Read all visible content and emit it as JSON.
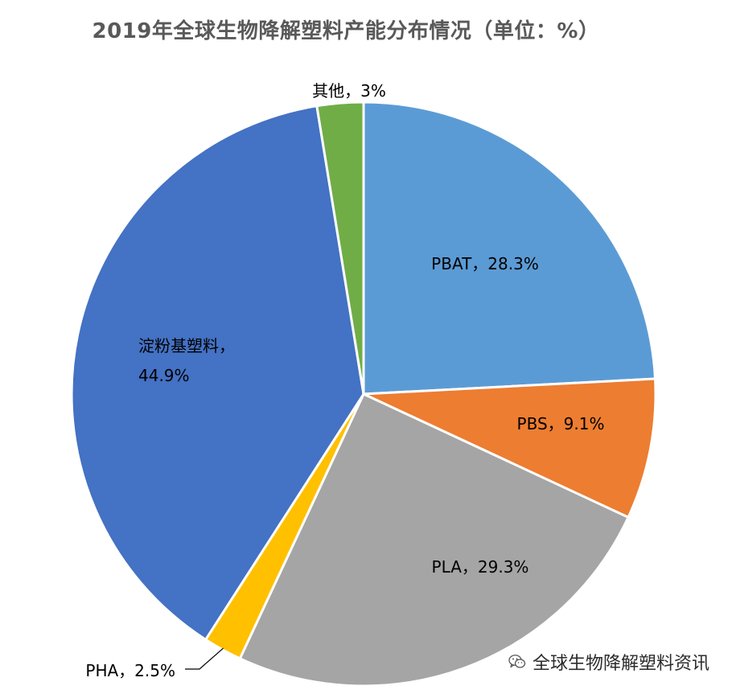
{
  "chart_data": {
    "type": "pie",
    "title": "2019年全球生物降解塑料产能分布情况（单位：%）",
    "slices": [
      {
        "name": "PBAT",
        "value": 28.3,
        "color": "#5B9BD5",
        "label_lines": [
          "PBAT，28.3%"
        ]
      },
      {
        "name": "PBS",
        "value": 9.1,
        "color": "#ED7D31",
        "label_lines": [
          "PBS，9.1%"
        ]
      },
      {
        "name": "PLA",
        "value": 29.3,
        "color": "#A5A5A5",
        "label_lines": [
          "PLA，29.3%"
        ]
      },
      {
        "name": "PHA",
        "value": 2.5,
        "color": "#FFC000",
        "label_lines": [
          "PHA，2.5%"
        ]
      },
      {
        "name": "淀粉基塑料",
        "value": 44.9,
        "color": "#4472C4",
        "label_lines": [
          "淀粉基塑料，",
          "44.9%"
        ]
      },
      {
        "name": "其他",
        "value": 3,
        "color": "#70AD47",
        "label_lines": [
          "其他，3%"
        ]
      }
    ],
    "start_angle_deg": 0,
    "direction": "clockwise",
    "legend": "none"
  },
  "watermark": {
    "text": "全球生物降解塑料资讯",
    "icon": "wechat-icon"
  }
}
